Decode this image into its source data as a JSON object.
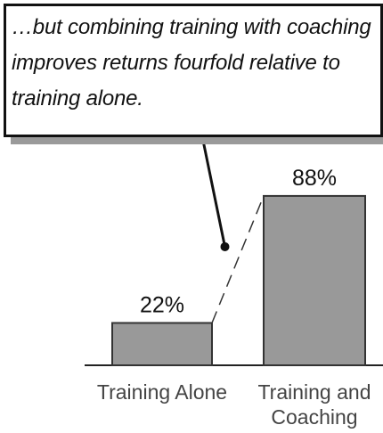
{
  "chart_data": {
    "type": "bar",
    "annotation": "…but combining training with coaching improves returns fourfold relative to training alone.",
    "categories": [
      "Training Alone",
      "Training and Coaching"
    ],
    "values": [
      22,
      88
    ],
    "value_labels": [
      "22%",
      "88%"
    ],
    "color": "#999999",
    "ylim": [
      0,
      100
    ]
  }
}
